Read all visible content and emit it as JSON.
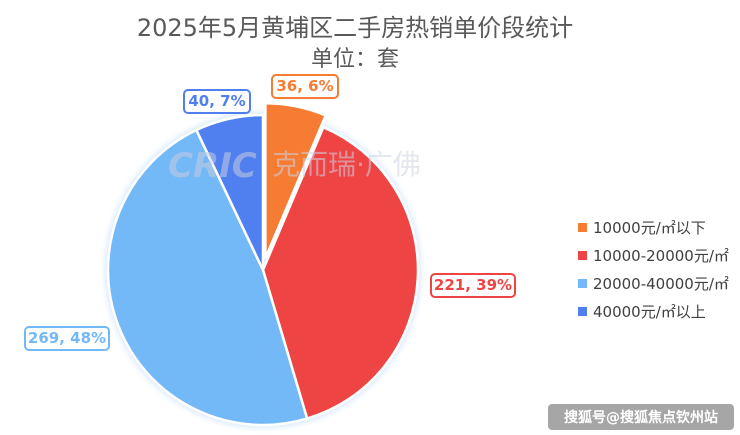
{
  "chart_data": {
    "type": "pie",
    "title": "2025年5月黄埔区二手房热销单价段统计",
    "subtitle": "单位：套",
    "categories": [
      "10000元/㎡以下",
      "10000-20000元/㎡",
      "20000-40000元/㎡",
      "40000元/㎡以上"
    ],
    "values": [
      36,
      221,
      269,
      40
    ],
    "percents": [
      "6%",
      "39%",
      "48%",
      "7%"
    ],
    "data_labels": [
      "36, 6%",
      "221, 39%",
      "269, 48%",
      "40, 7%"
    ],
    "colors": [
      "#f57c32",
      "#ef4444",
      "#74b9f7",
      "#5080f0"
    ],
    "exploded": [
      true,
      false,
      false,
      false
    ],
    "legend_position": "right"
  },
  "watermark": {
    "logo_text": "CRIC",
    "brand_text": "克而瑞·广佛"
  },
  "source_label": "搜狐号@搜狐焦点钦州站"
}
